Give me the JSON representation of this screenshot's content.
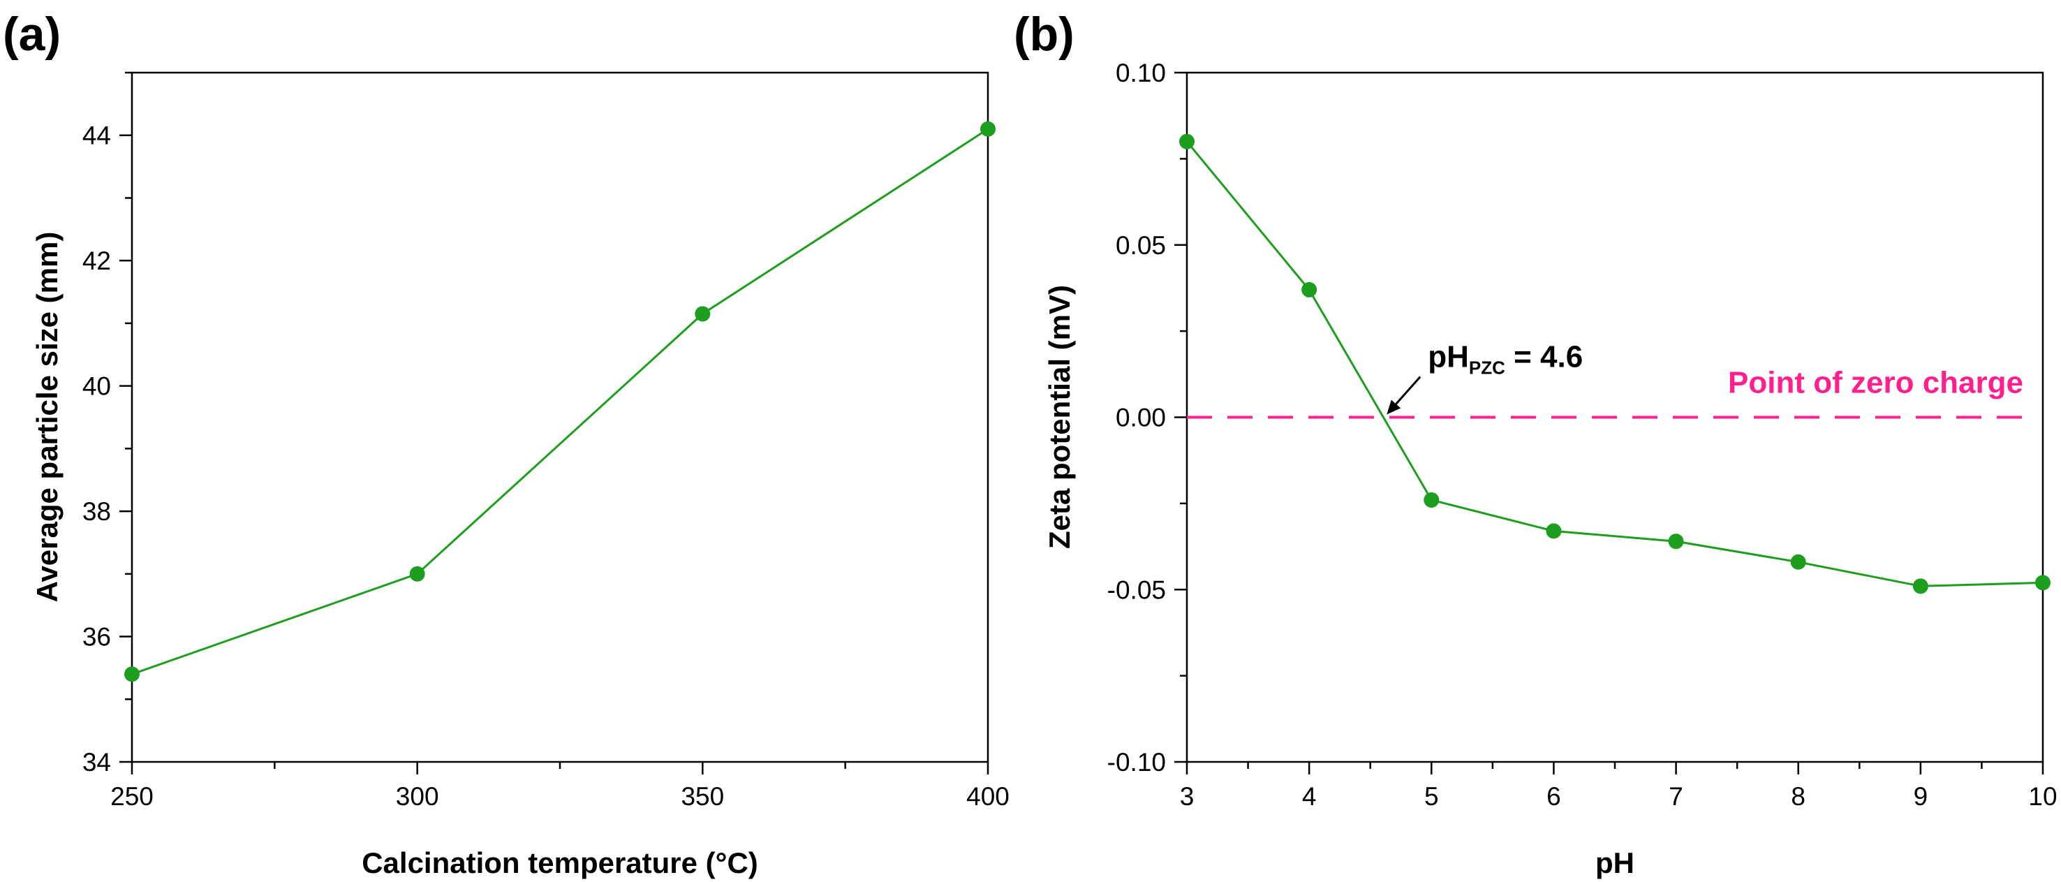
{
  "figure": {
    "panel_a_label": "(a)",
    "panel_b_label": "(b)"
  },
  "chart_data": [
    {
      "type": "line",
      "panel": "(a)",
      "x": [
        250,
        300,
        350,
        400
      ],
      "series": [
        {
          "name": "Average particle size",
          "values": [
            35.4,
            37.0,
            41.15,
            44.1
          ],
          "color": "#1e9e1e"
        }
      ],
      "xlabel": "Calcination temperature (°C)",
      "ylabel": "Average particle size (mm)",
      "xlim": [
        250,
        400
      ],
      "ylim": [
        34,
        45
      ],
      "xticks": [
        250,
        300,
        350,
        400
      ],
      "xtick_labels": [
        "250",
        "300",
        "350",
        "400"
      ],
      "yticks": [
        34,
        36,
        38,
        40,
        42,
        44
      ],
      "ytick_labels": [
        "34",
        "36",
        "38",
        "40",
        "42",
        "44"
      ],
      "grid": false
    },
    {
      "type": "line",
      "panel": "(b)",
      "x": [
        3,
        4,
        5,
        6,
        7,
        8,
        9,
        10
      ],
      "series": [
        {
          "name": "Zeta potential",
          "values": [
            0.08,
            0.037,
            -0.024,
            -0.033,
            -0.036,
            -0.042,
            -0.049,
            -0.048
          ],
          "color": "#1e9e1e"
        }
      ],
      "xlabel": "pH",
      "ylabel": "Zeta potential (mV)",
      "xlim": [
        3,
        10
      ],
      "ylim": [
        -0.1,
        0.1
      ],
      "xticks": [
        3,
        4,
        5,
        6,
        7,
        8,
        9,
        10
      ],
      "xtick_labels": [
        "3",
        "4",
        "5",
        "6",
        "7",
        "8",
        "9",
        "10"
      ],
      "yticks": [
        -0.1,
        -0.05,
        0.0,
        0.05,
        0.1
      ],
      "ytick_labels": [
        "-0.10",
        "-0.05",
        "0.00",
        "0.05",
        "0.10"
      ],
      "reference_line": {
        "y": 0.0,
        "style": "dashed",
        "color": "#ff1f8e",
        "label": "Point of zero charge"
      },
      "annotation": {
        "text_main": "pH",
        "text_sub": "PZC",
        "text_value": " = 4.6",
        "x": 4.6,
        "y": 0.0
      },
      "grid": false
    }
  ]
}
